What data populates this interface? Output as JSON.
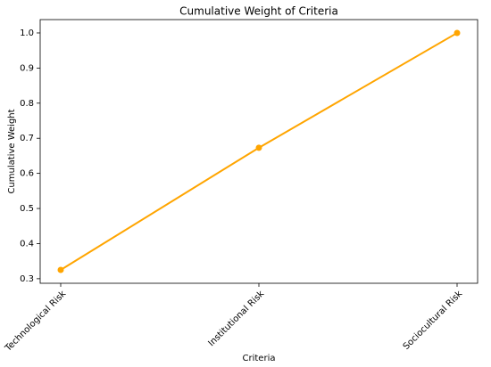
{
  "chart_data": {
    "type": "line",
    "title": "Cumulative Weight of Criteria",
    "x_label": "Criteria",
    "y_label": "Cumulative Weight",
    "categories": [
      "Technological Risk",
      "Institutional Risk",
      "Sociocultural Risk"
    ],
    "values": [
      0.325,
      0.673,
      1.0
    ],
    "color": "#ffa500",
    "marker": true,
    "ylim": [
      0.287,
      1.038
    ],
    "yticks": [
      0.3,
      0.4,
      0.5,
      0.6,
      0.7,
      0.8,
      0.9,
      {
        "value": 1.0,
        "label": "1.0"
      }
    ],
    "grid": false
  }
}
